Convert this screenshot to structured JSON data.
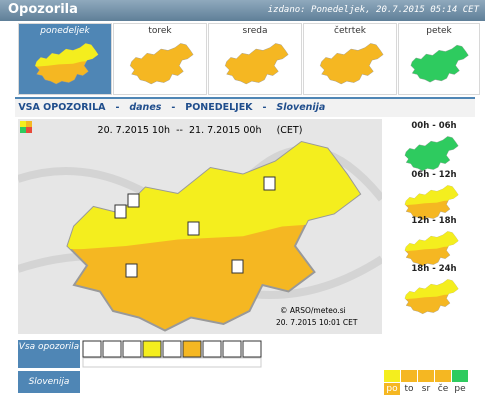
{
  "header": {
    "title": "Opozorila",
    "issued": "izdano: Ponedeljek, 20.7.2015 05:14 CET"
  },
  "days": [
    "ponedeljek",
    "torek",
    "sreda",
    "četrtek",
    "petek"
  ],
  "subheader": {
    "scope": "VSA OPOZORILA",
    "sep": "-",
    "when": "danes",
    "day": "PONEDELJEK",
    "region": "Slovenija"
  },
  "map": {
    "period": "20. 7.2015 10h  --  21. 7.2015 00h     (CET)",
    "credit": "© ARSO/meteo.si",
    "timestamp": "20. 7.2015  10:01 CET"
  },
  "periods": [
    "00h - 06h",
    "06h - 12h",
    "12h - 18h",
    "18h - 24h"
  ],
  "rows": {
    "all": "Vsa opozorila",
    "region": "Slovenija"
  },
  "legend": [
    "po",
    "to",
    "sr",
    "če",
    "pe"
  ]
}
